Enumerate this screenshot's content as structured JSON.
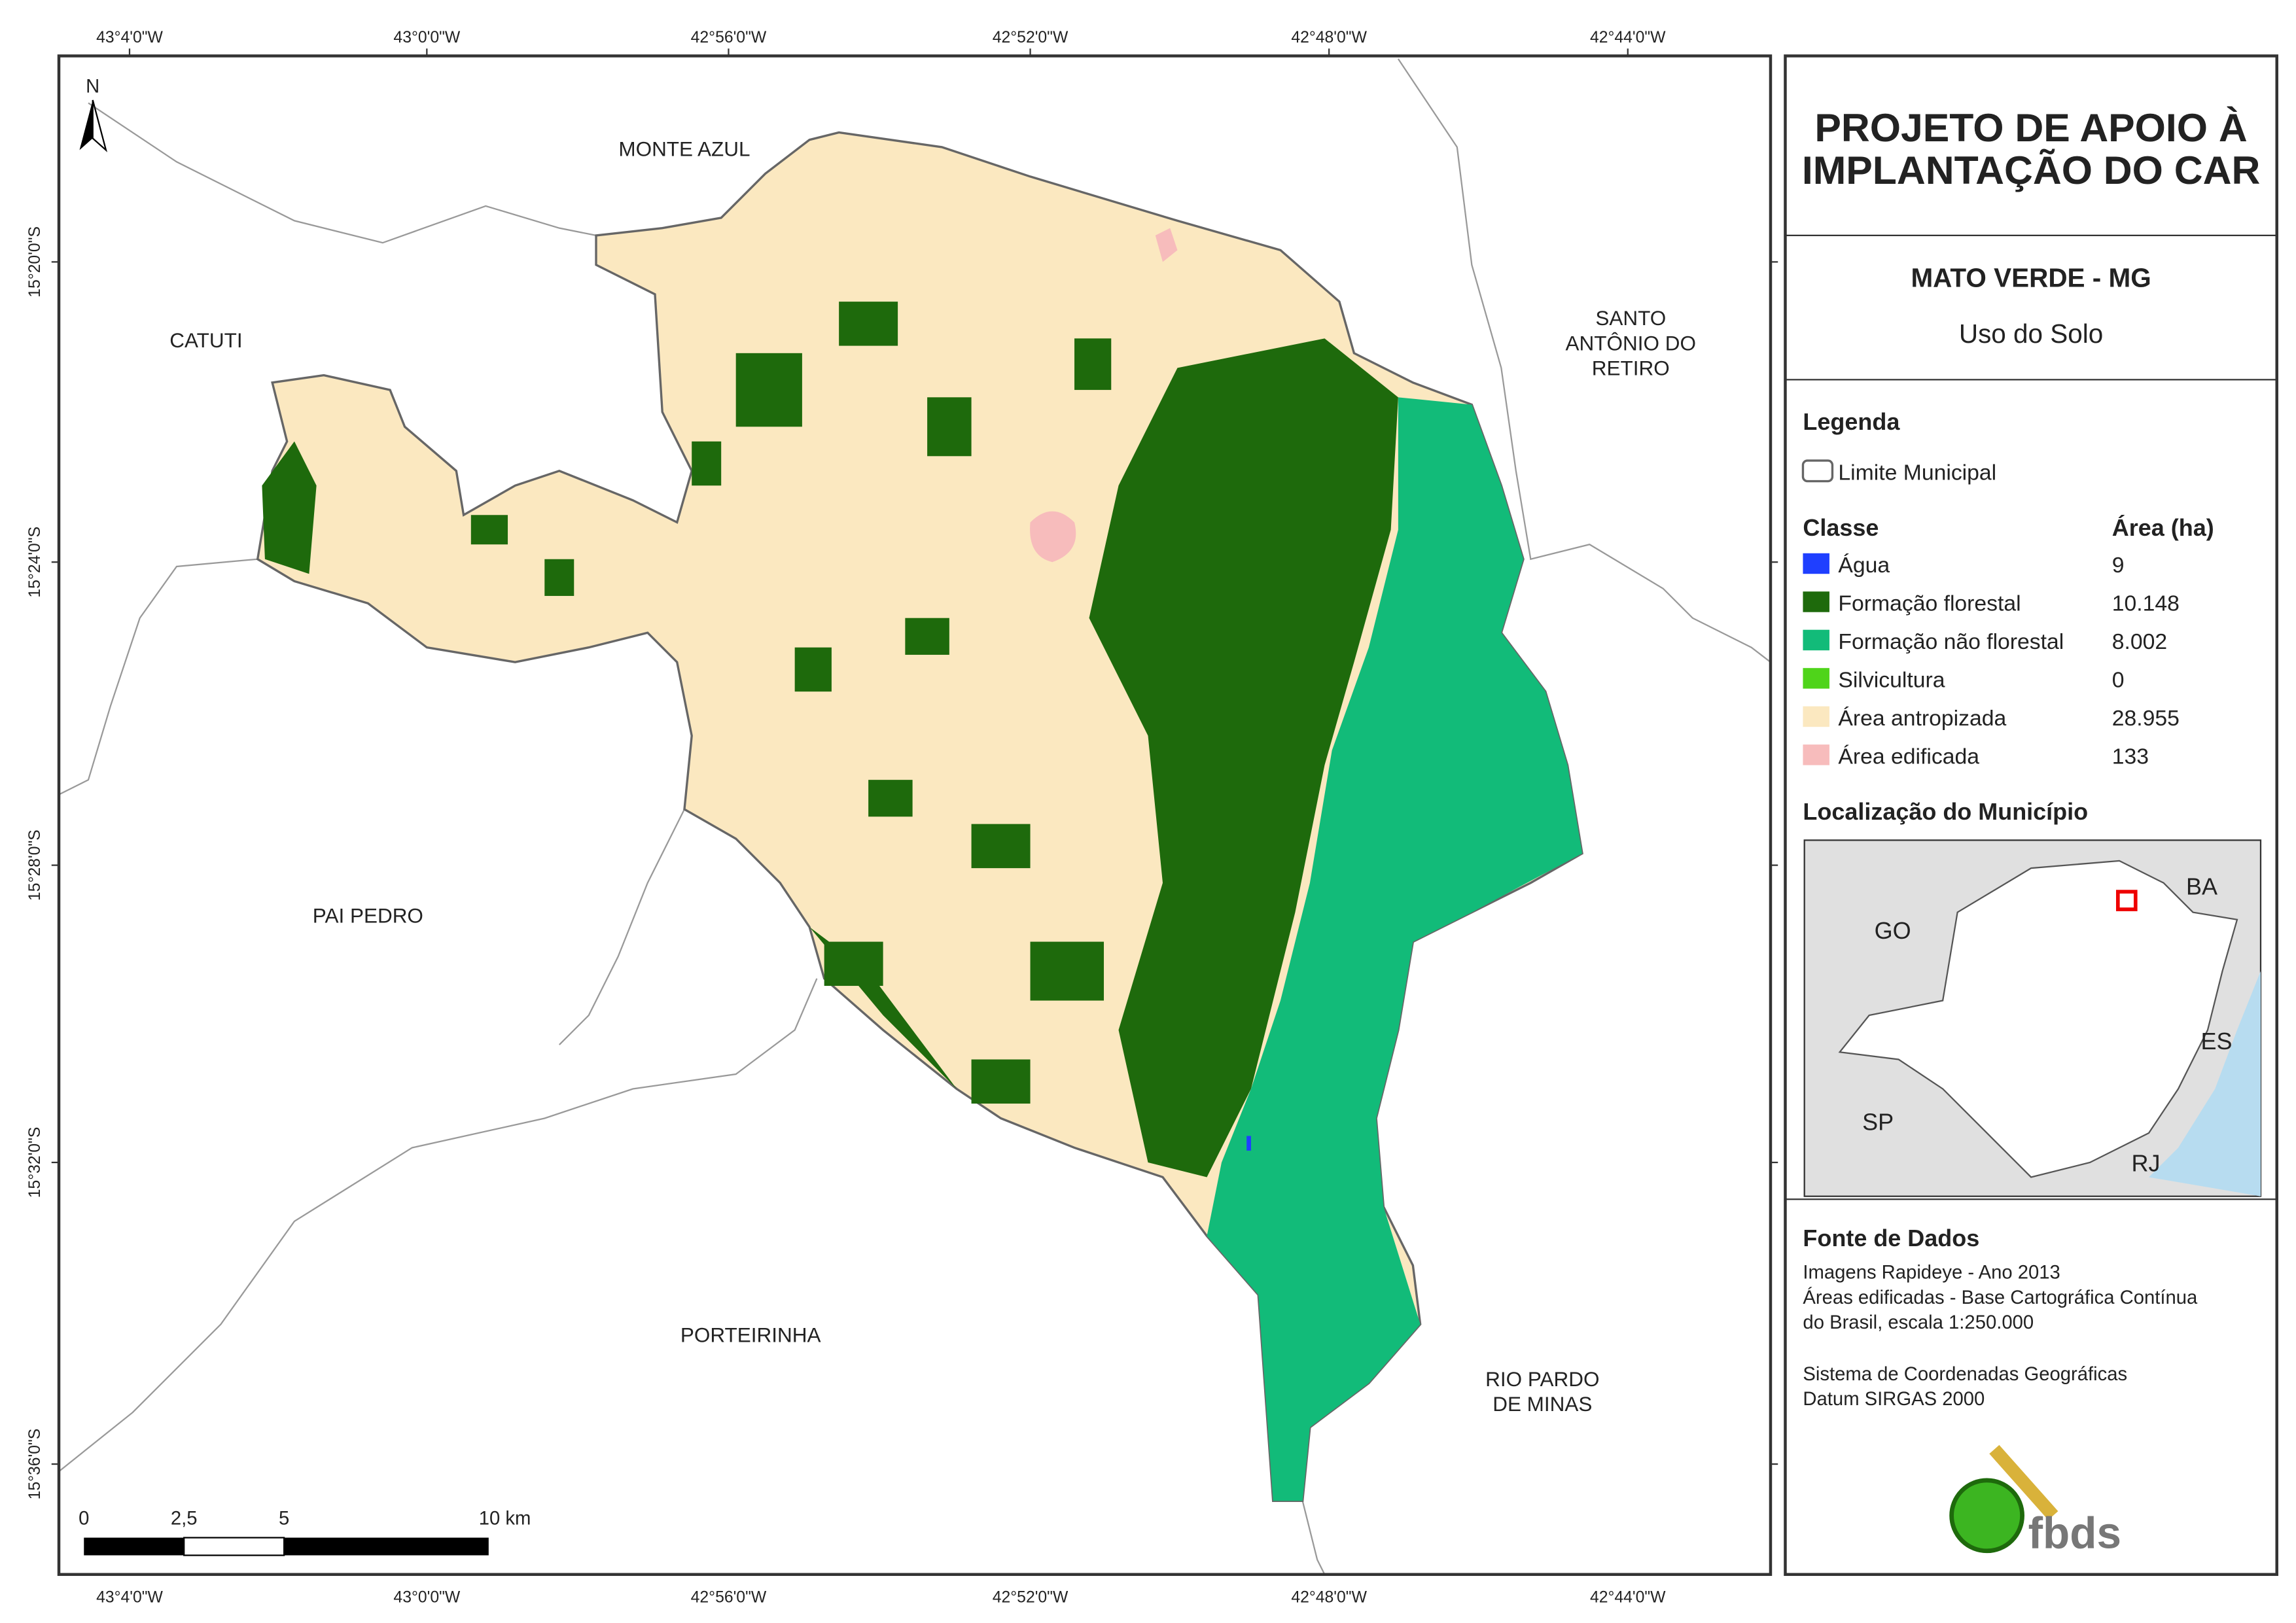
{
  "header": {
    "title_lines": [
      "PROJETO DE APOIO À",
      "IMPLANTAÇÃO DO CAR"
    ],
    "municipality": "MATO VERDE - MG",
    "theme": "Uso do Solo"
  },
  "legend": {
    "heading": "Legenda",
    "boundary": "Limite Municipal",
    "class_heading": "Classe",
    "area_heading": "Área (ha)",
    "classes": [
      {
        "name": "Água",
        "area": "9",
        "color": "#1f3fff"
      },
      {
        "name": "Formação florestal",
        "area": "10.148",
        "color": "#1e6a0c"
      },
      {
        "name": "Formação não florestal",
        "area": "8.002",
        "color": "#12bb79"
      },
      {
        "name": "Silvicultura",
        "area": "0",
        "color": "#4fd41a"
      },
      {
        "name": "Área antropizada",
        "area": "28.955",
        "color": "#fbe8c0"
      },
      {
        "name": "Área edificada",
        "area": "133",
        "color": "#f7bcbc"
      }
    ]
  },
  "location": {
    "heading": "Localização do Município",
    "states": [
      "BA",
      "GO",
      "ES",
      "SP",
      "RJ"
    ]
  },
  "sources": {
    "heading": "Fonte de Dados",
    "lines": [
      "Imagens Rapideye - Ano 2013",
      "Áreas edificadas - Base Cartográfica Contínua",
      "do Brasil, escala 1:250.000",
      "Sistema de Coordenadas Geográficas",
      "Datum SIRGAS 2000"
    ]
  },
  "logo": "fbds",
  "map": {
    "north": "N",
    "x_labels": [
      "43°4'0\"W",
      "43°0'0\"W",
      "42°56'0\"W",
      "42°52'0\"W",
      "42°48'0\"W",
      "42°44'0\"W"
    ],
    "y_labels": [
      "15°20'0\"S",
      "15°24'0\"S",
      "15°28'0\"S",
      "15°32'0\"S",
      "15°36'0\"S"
    ],
    "places": [
      [
        "MONTE AZUL"
      ],
      [
        "CATUTI"
      ],
      [
        "SANTO",
        "ANTÔNIO DO",
        "RETIRO"
      ],
      [
        "PAI PEDRO"
      ],
      [
        "PORTEIRINHA"
      ],
      [
        "RIO PARDO",
        "DE MINAS"
      ]
    ],
    "scale_labels": [
      "0",
      "2,5",
      "5",
      "10 km"
    ]
  }
}
